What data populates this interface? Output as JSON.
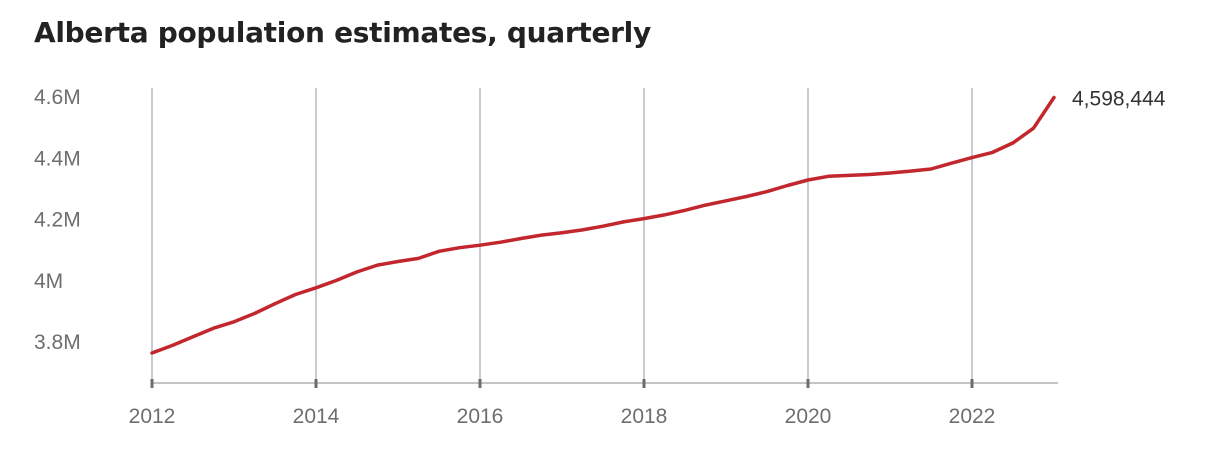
{
  "chart_data": {
    "type": "line",
    "title": "Alberta population estimates, quarterly",
    "xlabel": "",
    "ylabel": "",
    "x_ticks": [
      2012,
      2014,
      2016,
      2018,
      2020,
      2022
    ],
    "y_ticks": [
      3800000,
      4000000,
      4200000,
      4400000,
      4600000
    ],
    "y_tick_labels": [
      "3.8M",
      "4M",
      "4.2M",
      "4.4M",
      "4.6M"
    ],
    "xlim": [
      2012,
      2023
    ],
    "ylim": [
      3700000,
      4620000
    ],
    "grid": "vertical",
    "line_color": "#c1272d",
    "end_label": "4,598,444",
    "series": [
      {
        "x": [
          2012.0,
          2012.25,
          2012.5,
          2012.75,
          2013.0,
          2013.25,
          2013.5,
          2013.75,
          2014.0,
          2014.25,
          2014.5,
          2014.75,
          2015.0,
          2015.25,
          2015.5,
          2015.75,
          2016.0,
          2016.25,
          2016.5,
          2016.75,
          2017.0,
          2017.25,
          2017.5,
          2017.75,
          2018.0,
          2018.25,
          2018.5,
          2018.75,
          2019.0,
          2019.25,
          2019.5,
          2019.75,
          2020.0,
          2020.25,
          2020.5,
          2020.75,
          2021.0,
          2021.25,
          2021.5,
          2021.75,
          2022.0,
          2022.25,
          2022.5,
          2022.75,
          2023.0
        ],
        "values": [
          3764000,
          3789000,
          3817000,
          3845000,
          3866000,
          3893000,
          3925000,
          3955000,
          3977000,
          4001000,
          4029000,
          4051000,
          4063000,
          4073000,
          4096000,
          4108000,
          4116000,
          4126000,
          4138000,
          4149000,
          4157000,
          4166000,
          4178000,
          4192000,
          4203000,
          4215000,
          4230000,
          4247000,
          4261000,
          4275000,
          4291000,
          4311000,
          4329000,
          4341000,
          4344000,
          4347000,
          4352000,
          4358000,
          4365000,
          4384000,
          4402000,
          4419000,
          4450000,
          4498000,
          4598444
        ]
      }
    ]
  }
}
